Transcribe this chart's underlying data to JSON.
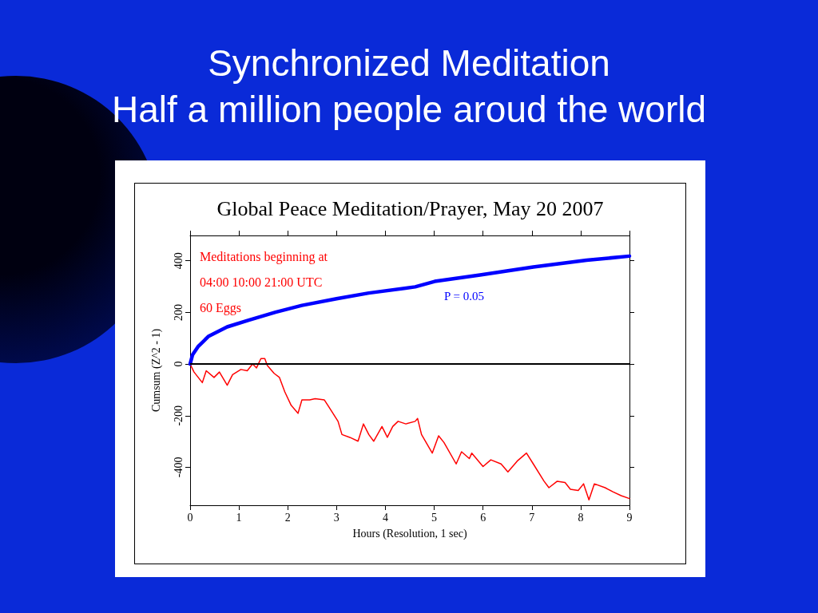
{
  "chart_data": {
    "type": "line",
    "title": "Synchronized Meditation",
    "subtitle": "Half a million people aroud the world",
    "xlabel": "Hours (Resolution, 1 sec)",
    "ylabel": "Cumsum (Z^2 - 1)",
    "annotations": [
      "Global Peace Meditation/Prayer, May 20 2007",
      "Meditations beginning at",
      "04:00 10:00 21:00 UTC",
      "60 Eggs",
      "P = 0.05"
    ],
    "series": [
      {
        "color": "#ff0000",
        "x": [
          0,
          0.08,
          0.25,
          0.33,
          0.49,
          0.6,
          0.76,
          0.87,
          1.04,
          1.17,
          1.28,
          1.36,
          1.45,
          1.53,
          1.58,
          1.72,
          1.83,
          1.94,
          2.07,
          2.21,
          2.29,
          2.45,
          2.56,
          2.75,
          2.89,
          3.03,
          3.11,
          3.27,
          3.44,
          3.55,
          3.66,
          3.76,
          3.93,
          4.04,
          4.15,
          4.26,
          4.42,
          4.61,
          4.66,
          4.74,
          4.96,
          5.09,
          5.2,
          5.45,
          5.56,
          5.72,
          5.77,
          6.0,
          6.16,
          6.37,
          6.51,
          6.7,
          6.89,
          7.03,
          7.25,
          7.35,
          7.52,
          7.68,
          7.79,
          7.95,
          8.06,
          8.17,
          8.28,
          8.5,
          8.66,
          8.83,
          9.0
        ],
        "values": [
          0,
          -31,
          -72,
          -26,
          -52,
          -31,
          -82,
          -41,
          -21,
          -26,
          0,
          -15,
          21,
          21,
          -5,
          -36,
          -52,
          -108,
          -160,
          -191,
          -139,
          -139,
          -134,
          -139,
          -180,
          -222,
          -273,
          -284,
          -299,
          -232,
          -273,
          -299,
          -242,
          -284,
          -242,
          -222,
          -232,
          -222,
          -211,
          -273,
          -345,
          -278,
          -304,
          -387,
          -340,
          -366,
          -345,
          -397,
          -371,
          -387,
          -418,
          -376,
          -345,
          -387,
          -454,
          -479,
          -454,
          -459,
          -485,
          -490,
          -464,
          -526,
          -464,
          -479,
          -495,
          -510,
          -521
        ]
      },
      {
        "color": "#0000ff",
        "x": [
          0,
          0.05,
          0.16,
          0.38,
          0.76,
          1.2,
          1.75,
          2.29,
          3.0,
          3.66,
          4.61,
          5.01,
          5.94,
          7.03,
          8.12,
          9.0
        ],
        "values": [
          0,
          36,
          67,
          108,
          144,
          170,
          201,
          227,
          253,
          275,
          299,
          320,
          345,
          376,
          402,
          418
        ]
      }
    ],
    "xlim": [
      0,
      9
    ],
    "xticks": [
      0,
      1,
      2,
      3,
      4,
      5,
      6,
      7,
      8,
      9
    ],
    "ylim": [
      -547,
      498
    ],
    "yticks": [
      -400,
      -200,
      0,
      200,
      400
    ],
    "ref_lines": [
      {
        "axis": "y",
        "value": 0,
        "color": "#000000"
      }
    ],
    "grid": false,
    "marker": "none",
    "line_style": "solid"
  }
}
